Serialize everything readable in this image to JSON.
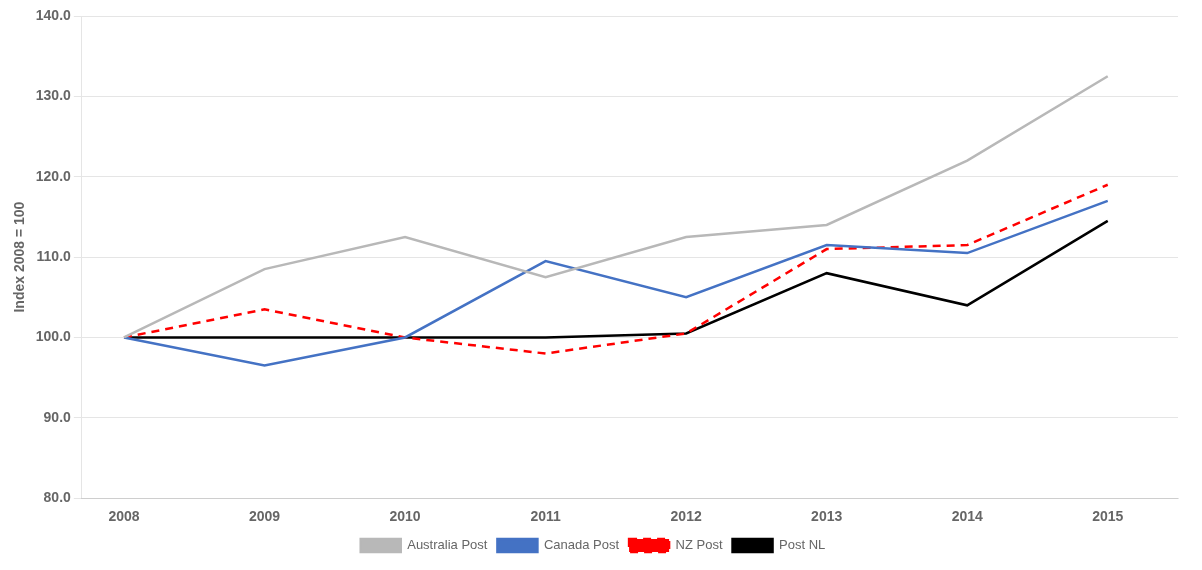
{
  "chart_data": {
    "type": "line",
    "x": [
      2008,
      2009,
      2010,
      2011,
      2012,
      2013,
      2014,
      2015
    ],
    "series": [
      {
        "name": "Australia Post",
        "color": "#b8b8b8",
        "values": [
          100.0,
          108.5,
          112.5,
          107.5,
          112.5,
          114.0,
          122.0,
          132.5
        ]
      },
      {
        "name": "Canada Post",
        "color": "#4472c4",
        "values": [
          100.0,
          96.5,
          100.0,
          109.5,
          105.0,
          111.5,
          110.5,
          117.0
        ]
      },
      {
        "name": "NZ Post",
        "color": "#ff0000",
        "line_style": "dashed",
        "values": [
          100.0,
          103.5,
          100.0,
          98.0,
          100.5,
          111.0,
          111.5,
          119.0
        ]
      },
      {
        "name": "Post NL",
        "color": "#000000",
        "values": [
          100.0,
          100.0,
          100.0,
          100.0,
          100.5,
          108.0,
          104.0,
          114.5
        ]
      }
    ],
    "ylabel": "Index 2008 = 100",
    "xlim": [
      2007.7,
      2015.5
    ],
    "xticks": [
      2008,
      2009,
      2010,
      2011,
      2012,
      2013,
      2014,
      2015
    ],
    "ylim": [
      80.0,
      140.0
    ],
    "yticks": [
      {
        "value": 80,
        "label": "80.0"
      },
      {
        "value": 90,
        "label": "90.0"
      },
      {
        "value": 100,
        "label": "100.0"
      },
      {
        "value": 110,
        "label": "110.0"
      },
      {
        "value": 120,
        "label": "120.0"
      },
      {
        "value": 130,
        "label": "130.0"
      },
      {
        "value": 140,
        "label": "140.0"
      }
    ],
    "grid": "y",
    "legend": "bottom"
  }
}
